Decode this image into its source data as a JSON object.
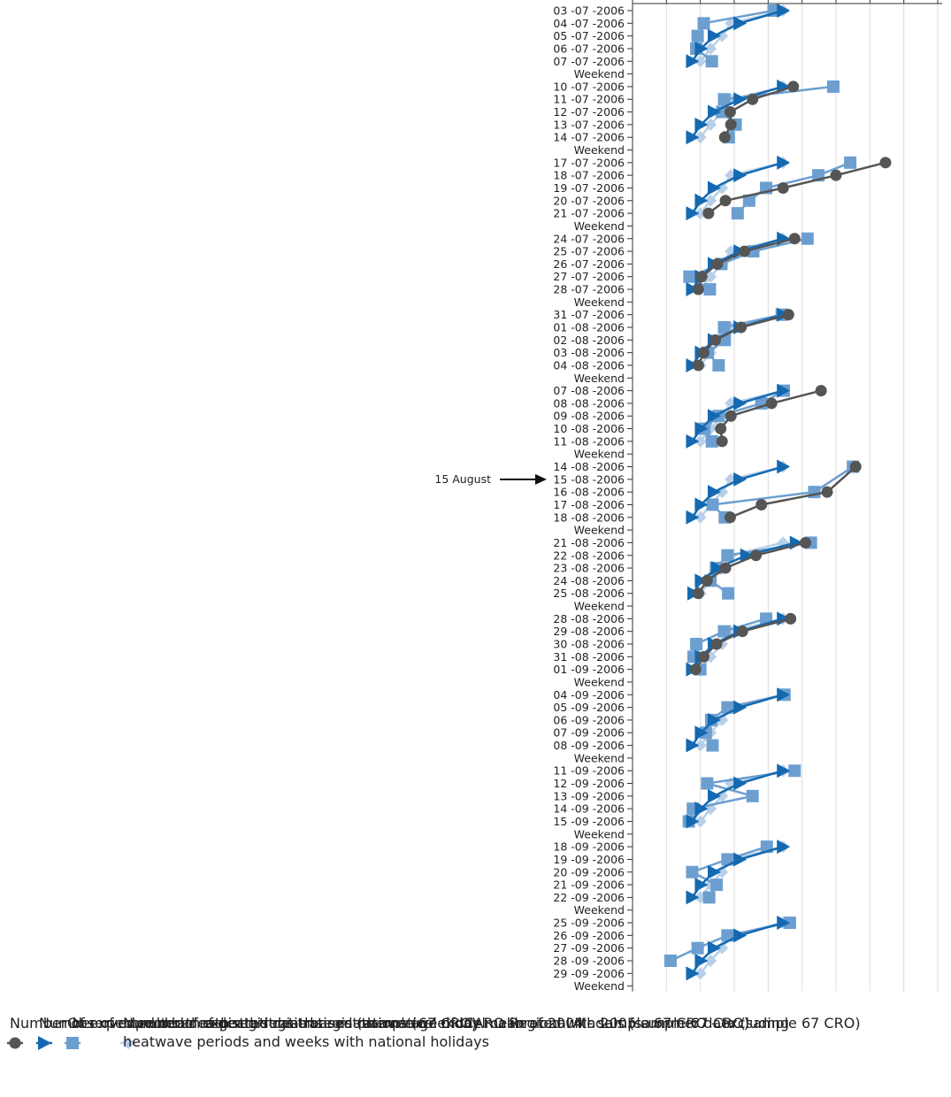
{
  "chart_data": {
    "type": "line",
    "orientation": "rotated-90-clockwise",
    "grid": true,
    "legend_placement": "bottom",
    "ylim": [
      100,
      550
    ],
    "yticks": [
      550,
      500,
      450,
      400,
      350,
      300,
      250,
      200,
      150,
      100
    ],
    "categories": [
      "03 -07 -2006",
      "04 -07 -2006",
      "05 -07 -2006",
      "06 -07 -2006",
      "07 -07 -2006",
      "Weekend",
      "10 -07 -2006",
      "11 -07 -2006",
      "12 -07 -2006",
      "13 -07 -2006",
      "14 -07 -2006",
      "Weekend",
      "17 -07 -2006",
      "18 -07 -2006",
      "19 -07 -2006",
      "20 -07 -2006",
      "21 -07 -2006",
      "Weekend",
      "24 -07 -2006",
      "25 -07 -2006",
      "26 -07 -2006",
      "27 -07 -2006",
      "28 -07 -2006",
      "Weekend",
      "31 -07 -2006",
      "01 -08 -2006",
      "02 -08 -2006",
      "03 -08 -2006",
      "04 -08 -2006",
      "Weekend",
      "07 -08 -2006",
      "08 -08 -2006",
      "09 -08 -2006",
      "10 -08 -2006",
      "11 -08 -2006",
      "Weekend",
      "14 -08 -2006",
      "15 -08 -2006",
      "16 -08 -2006",
      "17 -08 -2006",
      "18 -08 -2006",
      "Weekend",
      "21 -08 -2006",
      "22 -08 -2006",
      "23 -08 -2006",
      "24 -08 -2006",
      "25 -08 -2006",
      "Weekend",
      "28 -08 -2006",
      "29 -08 -2006",
      "30 -08 -2006",
      "31 -08 -2006",
      "01 -09 -2006",
      "Weekend",
      "04 -09 -2006",
      "05 -09 -2006",
      "06 -09 -2006",
      "07 -09 -2006",
      "08 -09 -2006",
      "Weekend",
      "11 -09 -2006",
      "12 -09 -2006",
      "13 -09 -2006",
      "14 -09 -2006",
      "15 -09 -2006",
      "Weekend",
      "18 -09 -2006",
      "19 -09 -2006",
      "20 -09 -2006",
      "21 -09 -2006",
      "22 -09 -2006",
      "Weekend",
      "25 -09 -2006",
      "26 -09 -2006",
      "27 -09 -2006",
      "28 -09 -2006",
      "29 -09 -2006",
      "Weekend"
    ],
    "series": [
      {
        "name": "Number of expected death registrations (weekday mean of 2004 - sample 67 CRO - excluding heatwave periods and weeks with national holidays",
        "color": "#b8cfe9",
        "marker": "diamond",
        "values": [
          322,
          245,
          232,
          215,
          200,
          null,
          322,
          245,
          232,
          215,
          200,
          null,
          322,
          245,
          232,
          215,
          200,
          null,
          322,
          245,
          232,
          215,
          200,
          null,
          322,
          245,
          232,
          215,
          200,
          null,
          322,
          245,
          232,
          215,
          200,
          null,
          322,
          245,
          232,
          215,
          200,
          null,
          322,
          245,
          232,
          215,
          200,
          null,
          322,
          245,
          232,
          215,
          200,
          null,
          322,
          245,
          232,
          215,
          200,
          null,
          322,
          245,
          232,
          215,
          200,
          null,
          322,
          245,
          232,
          215,
          200,
          null,
          322,
          245,
          232,
          215,
          200,
          null
        ]
      },
      {
        "name": "Observed number of death registrations (sample 67 CRO)",
        "color": "#6c9fd0",
        "marker": "square",
        "values": [
          308,
          205,
          196,
          194,
          217,
          null,
          396,
          235,
          232,
          252,
          242,
          null,
          421,
          374,
          297,
          272,
          255,
          null,
          358,
          278,
          231,
          184,
          214,
          null,
          320,
          235,
          236,
          211,
          227,
          null,
          323,
          290,
          227,
          206,
          217,
          null,
          425,
          null,
          368,
          218,
          236,
          null,
          363,
          240,
          223,
          215,
          241,
          null,
          297,
          235,
          194,
          190,
          200,
          null,
          324,
          240,
          216,
          208,
          218,
          null,
          339,
          210,
          277,
          189,
          183,
          null,
          298,
          240,
          188,
          224,
          213,
          null,
          332,
          240,
          196,
          156,
          null,
          null
        ]
      },
      {
        "name": "Number of expected death registrations – mathematical model calibrated with 2005 summer data (sample 67 CRO)",
        "color": "#1469b0",
        "marker": "triangle",
        "values": [
          322,
          258,
          220,
          201,
          188,
          null,
          322,
          258,
          220,
          201,
          188,
          null,
          322,
          258,
          220,
          201,
          188,
          null,
          322,
          258,
          220,
          201,
          188,
          null,
          322,
          258,
          220,
          201,
          188,
          null,
          322,
          258,
          220,
          201,
          188,
          null,
          322,
          258,
          220,
          201,
          188,
          null,
          341,
          268,
          225,
          201,
          190,
          null,
          322,
          258,
          220,
          201,
          188,
          null,
          322,
          258,
          220,
          201,
          188,
          null,
          322,
          258,
          220,
          201,
          188,
          null,
          322,
          258,
          220,
          201,
          188,
          null,
          322,
          258,
          220,
          201,
          188,
          null
        ]
      },
      {
        "name": "Number of expected death registrations – based on average of ICARO Regional Models (sample 67 CRO)",
        "color": "#555555",
        "marker": "circle",
        "values": [
          null,
          null,
          null,
          null,
          null,
          null,
          337,
          277,
          244,
          245,
          236,
          null,
          473,
          400,
          322,
          237,
          212,
          null,
          339,
          265,
          225,
          202,
          197,
          null,
          330,
          260,
          222,
          205,
          197,
          null,
          378,
          305,
          245,
          230,
          232,
          null,
          429,
          null,
          387,
          290,
          244,
          null,
          355,
          282,
          237,
          210,
          197,
          null,
          333,
          262,
          224,
          205,
          193,
          null,
          null,
          null,
          null,
          null,
          null,
          null,
          null,
          null,
          null,
          null,
          null,
          null,
          null,
          null,
          null,
          null,
          null,
          null,
          null,
          null,
          null,
          null,
          null,
          null
        ]
      }
    ],
    "annotations": [
      {
        "text": "15 August",
        "category_index": 37
      }
    ]
  }
}
